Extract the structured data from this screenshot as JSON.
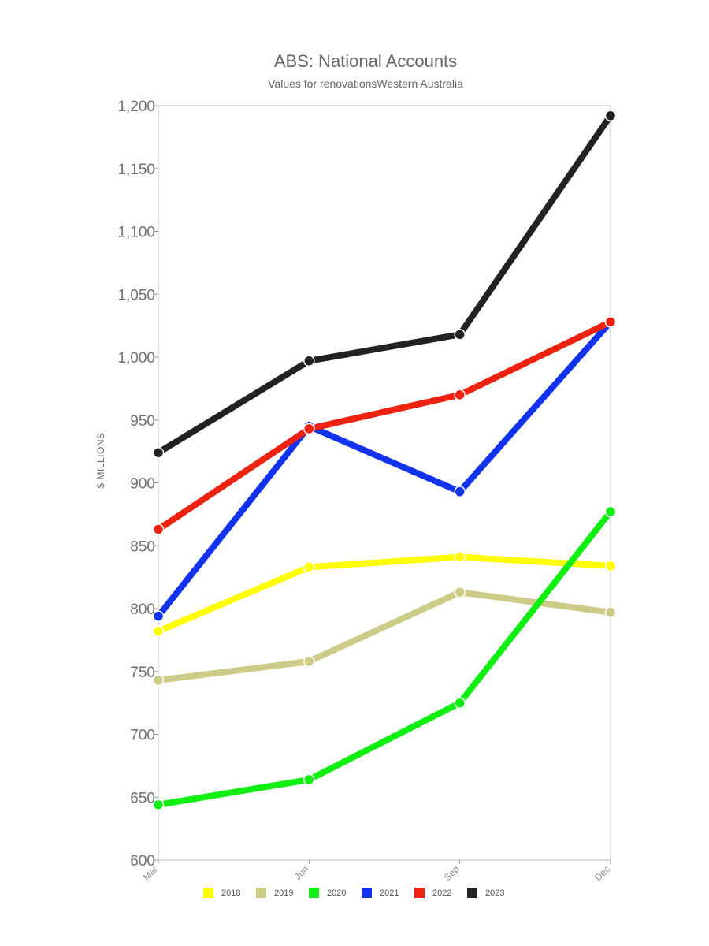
{
  "chart_data": {
    "type": "line",
    "title": "ABS: National Accounts",
    "subtitle": "Values for renovationsWestern Australia",
    "ylabel": "$ MILLIONS",
    "xlabel": "",
    "categories": [
      "Mar",
      "Jun",
      "Sep",
      "Dec"
    ],
    "ylim": [
      600,
      1200
    ],
    "yticks": [
      600,
      650,
      700,
      750,
      800,
      850,
      900,
      950,
      1000,
      1050,
      1100,
      1150,
      1200
    ],
    "ytick_labels": [
      "600",
      "650",
      "700",
      "750",
      "800",
      "850",
      "900",
      "950",
      "1,000",
      "1,050",
      "1,100",
      "1,150",
      "1,200"
    ],
    "grid": false,
    "legend_position": "bottom",
    "series": [
      {
        "name": "2018",
        "color": "#ffff00",
        "values": [
          782,
          833,
          841,
          834
        ]
      },
      {
        "name": "2019",
        "color": "#cccc88",
        "values": [
          743,
          758,
          813,
          797
        ]
      },
      {
        "name": "2020",
        "color": "#11ee11",
        "values": [
          644,
          664,
          725,
          877
        ]
      },
      {
        "name": "2021",
        "color": "#1133ee",
        "values": [
          794,
          945,
          893,
          1028
        ]
      },
      {
        "name": "2022",
        "color": "#ee2211",
        "values": [
          863,
          943,
          970,
          1028
        ]
      },
      {
        "name": "2023",
        "color": "#222222",
        "values": [
          924,
          997,
          1018,
          1192
        ]
      }
    ]
  }
}
